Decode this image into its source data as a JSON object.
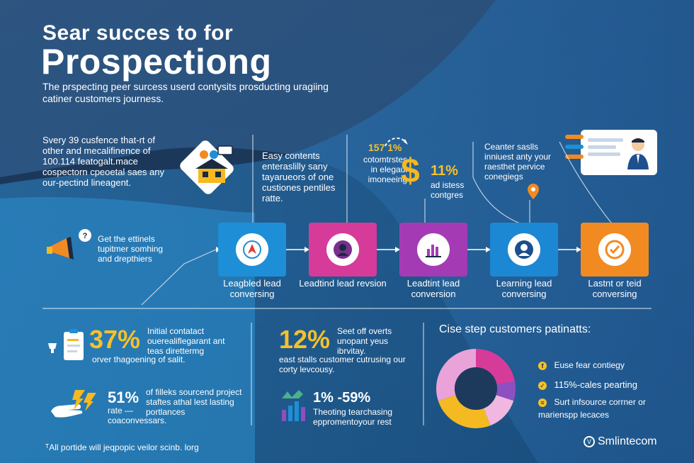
{
  "header": {
    "title_line1": "Sear succes to for",
    "title_line2": "Prospectiong",
    "subtitle": "The prspecting peer surcess userd contysits prosducting uragiing catiner customers journess."
  },
  "top_left_text": "Svery 39 cusfence that-rt of other and mecalifinence of 100.114 featogalt.mace cospectorn cpeoetal saes any our-pectind lineagent.",
  "top_mid_text": "Easy contents enteraslilly sany tayarueors of one custiones pentiles ratte.",
  "top_stat": {
    "percent_a": "157 1%",
    "desc_a": "cotomtrstes in elegaul imoneeing",
    "percent_b": "11%",
    "desc_b": "ad istess contgres"
  },
  "top_right_text": "Ceanter saslls inniuest anty your raesthet pervice conegiegs",
  "left_callout": "Get the ettinels tupitmer somhing and drepthiers",
  "steps": [
    {
      "label": "Leagbled lead conversing",
      "color": "#1e8fd6"
    },
    {
      "label": "Leadtind lead revsion",
      "color": "#d63b9a"
    },
    {
      "label": "Leadtint lead conversion",
      "color": "#a43bb5"
    },
    {
      "label": "Learning lead conversing",
      "color": "#1c88d4"
    },
    {
      "label": "Lastnt or teid conversing",
      "color": "#f28a22"
    }
  ],
  "stats": {
    "s1_value": "37%",
    "s1_text": "Initial contatact ouerealiflegarant ant teas direttermg",
    "s1_sub": "orver thagoening of salit.",
    "s2_value": "51%",
    "s2_rate": "rate —",
    "s2_text": "of filleks sourcend project staftes athal lest lasting portlances",
    "s2_sub": "coaconvessars.",
    "s3_value": "12%",
    "s3_text": "Seet off overts unopant yeus ibrvitay.",
    "s3_sub": "east stalls customer cutrusing our corty levcousy.",
    "s4_value": "1% -59%",
    "s4_text": "Theoting tearchasing eppromentoyour rest"
  },
  "chart_panel": {
    "title": "Cise step customers patinatts:",
    "legend": [
      {
        "icon": "f",
        "text": "Euse fear contiegy"
      },
      {
        "icon": "✓",
        "text": "115%-cales pearting"
      },
      {
        "icon": "≡",
        "text": "Surt infsource corrner or marienspp lecaces"
      }
    ]
  },
  "chart_data": {
    "type": "pie",
    "values": [
      0.22,
      0.08,
      0.14,
      0.26,
      0.3
    ],
    "colors": [
      "#d63b9a",
      "#8e4fc0",
      "#f0b8e0",
      "#f5b921",
      "#e9a3d8"
    ]
  },
  "footer": {
    "note": "ᵀAll portide will jeqpopic veilor scinb. lorg",
    "brand": "Smlintecom"
  },
  "colors": {
    "accent": "#f5c12a"
  }
}
